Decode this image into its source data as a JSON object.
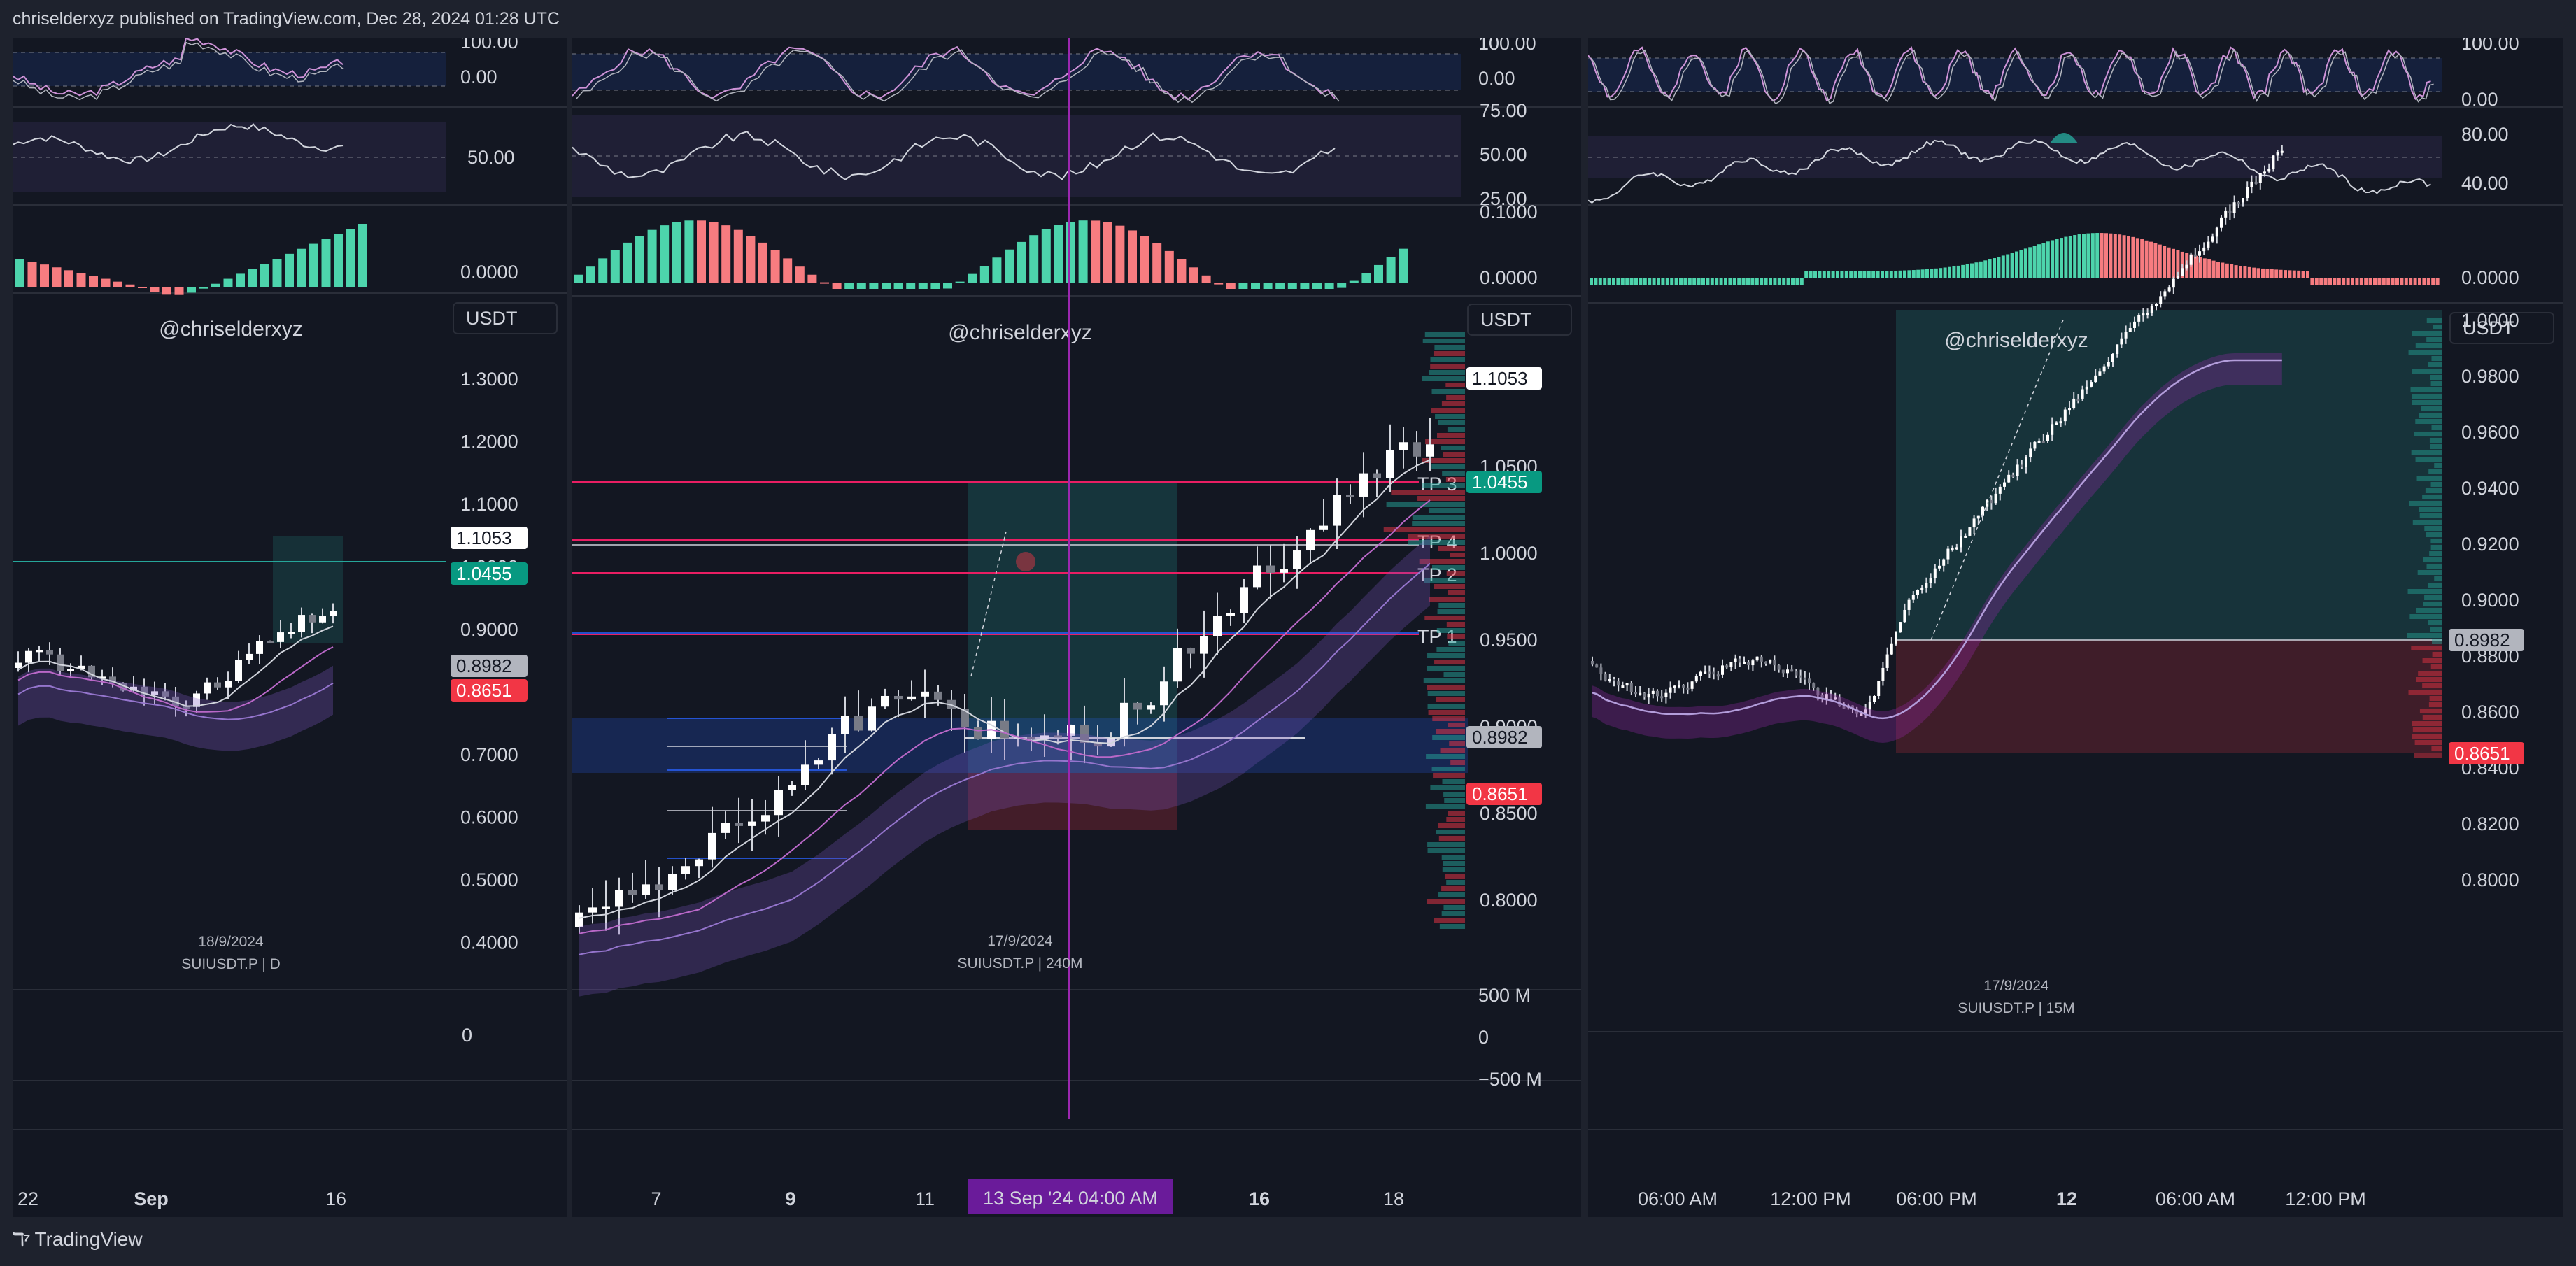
{
  "header": {
    "published_text": "chriselderxyz published on TradingView.com, Dec 28, 2024 01:28 UTC"
  },
  "footer": {
    "brand": "TradingView",
    "logo_icon": "tradingview-logo-icon"
  },
  "colors": {
    "bg": "#131722",
    "up": "#ffffff",
    "down": "#787b86",
    "teal": "#26a69a",
    "red": "#f23645",
    "histo_up": "#4dd4ac",
    "histo_down": "#f77c80",
    "purple": "#9c27b0",
    "pink": "#e91e63",
    "blue": "#2962ff"
  },
  "panels": [
    {
      "id": "daily",
      "currency": "USDT",
      "watermark": "@chriselderxyz",
      "date": "18/9/2024",
      "symbol": "SUIUSDT.P | D",
      "price_ticks": [
        "1.3000",
        "1.2000",
        "1.1000",
        "1.0000",
        "0.9000",
        "0.8000",
        "0.7000",
        "0.6000",
        "0.5000",
        "0.4000"
      ],
      "stoch_ticks": [
        "100.00",
        "0.00"
      ],
      "rsi_ticks": [
        "50.00"
      ],
      "macd_ticks": [
        "0.0000"
      ],
      "volume_ticks": [
        "0"
      ],
      "price_labels": [
        {
          "value": "1.1053",
          "style": "white"
        },
        {
          "value": "1.0455",
          "style": "teal"
        },
        {
          "value": "0.8982",
          "style": "gray"
        },
        {
          "value": "0.8651",
          "style": "red"
        }
      ],
      "time_labels": [
        {
          "text": "22",
          "bold": false
        },
        {
          "text": "Sep",
          "bold": true
        },
        {
          "text": "16",
          "bold": false
        }
      ]
    },
    {
      "id": "h4",
      "currency": "USDT",
      "watermark": "@chriselderxyz",
      "date": "17/9/2024",
      "symbol": "SUIUSDT.P | 240M",
      "price_ticks": [
        "1.1000",
        "1.0500",
        "1.0000",
        "0.9500",
        "0.9000",
        "0.8500",
        "0.8000"
      ],
      "stoch_ticks": [
        "100.00",
        "0.00"
      ],
      "rsi_ticks": [
        "75.00",
        "50.00",
        "25.00"
      ],
      "macd_ticks": [
        "0.1000",
        "0.0000"
      ],
      "volume_ticks": [
        "500 M",
        "0",
        "−500 M"
      ],
      "tp_labels": [
        "TP 3",
        "TP 4",
        "TP 2",
        "TP 1"
      ],
      "price_labels": [
        {
          "value": "1.1053",
          "style": "white"
        },
        {
          "value": "1.0455",
          "style": "teal"
        },
        {
          "value": "0.8982",
          "style": "gray"
        },
        {
          "value": "0.8651",
          "style": "red"
        }
      ],
      "crosshair_label": "13 Sep '24   04:00 AM",
      "time_labels": [
        {
          "text": "7",
          "bold": false
        },
        {
          "text": "9",
          "bold": true
        },
        {
          "text": "11",
          "bold": false
        },
        {
          "text": "16",
          "bold": true
        },
        {
          "text": "18",
          "bold": false
        }
      ]
    },
    {
      "id": "m15",
      "currency": "USDT",
      "watermark": "@chriselderxyz",
      "date": "17/9/2024",
      "symbol": "SUIUSDT.P | 15M",
      "price_ticks": [
        "1.0000",
        "0.9800",
        "0.9600",
        "0.9400",
        "0.9200",
        "0.9000",
        "0.8800",
        "0.8600",
        "0.8400",
        "0.8200",
        "0.8000"
      ],
      "stoch_ticks": [
        "100.00",
        "0.00"
      ],
      "rsi_ticks": [
        "80.00",
        "40.00"
      ],
      "macd_ticks": [
        "0.0000"
      ],
      "price_labels": [
        {
          "value": "0.8982",
          "style": "gray"
        },
        {
          "value": "0.8651",
          "style": "red"
        }
      ],
      "time_labels": [
        {
          "text": "06:00 AM",
          "bold": false
        },
        {
          "text": "12:00 PM",
          "bold": false
        },
        {
          "text": "06:00 PM",
          "bold": false
        },
        {
          "text": "12",
          "bold": true
        },
        {
          "text": "06:00 AM",
          "bold": false
        },
        {
          "text": "12:00 PM",
          "bold": false
        }
      ]
    }
  ]
}
